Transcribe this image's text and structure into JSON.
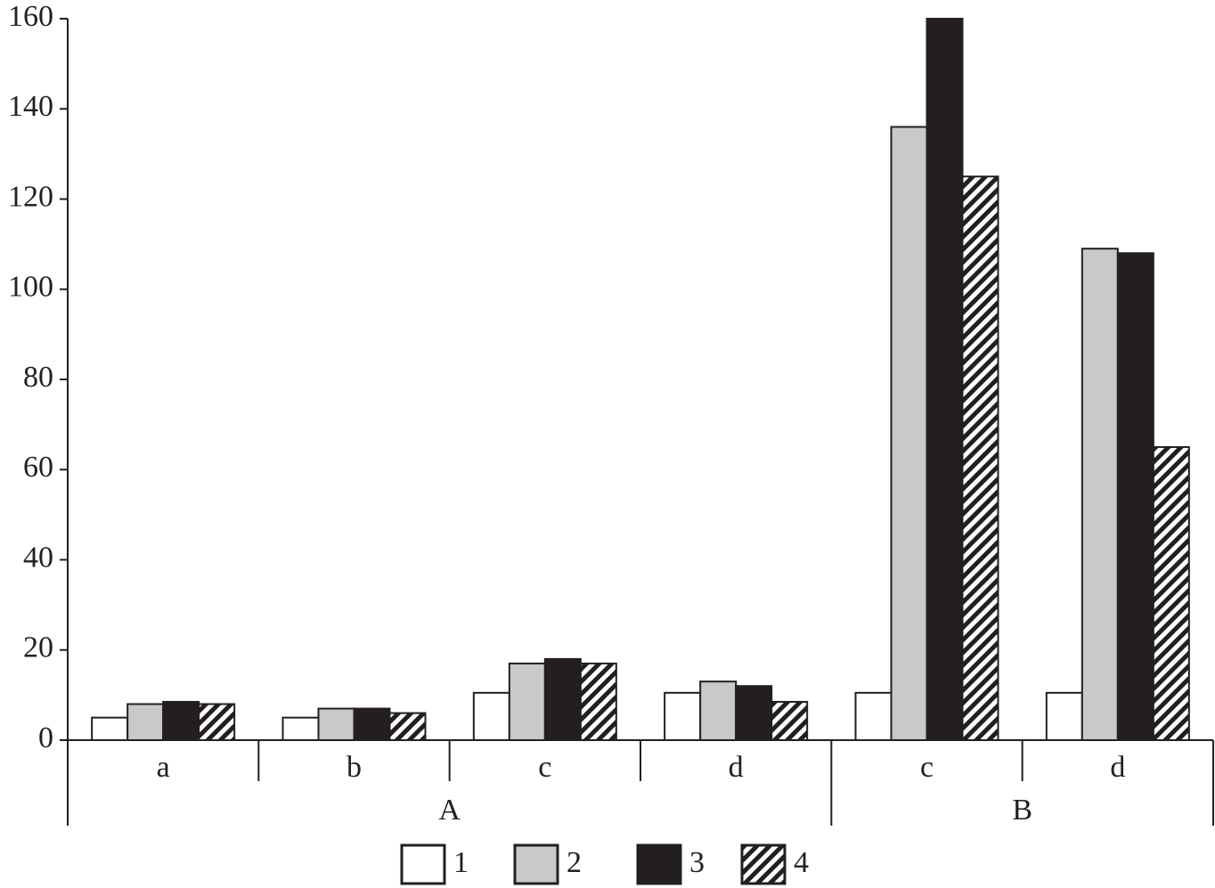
{
  "chart_data": {
    "type": "bar",
    "groups": [
      {
        "name": "A",
        "categories": [
          "a",
          "b",
          "c",
          "d"
        ]
      },
      {
        "name": "B",
        "categories": [
          "c",
          "d"
        ]
      }
    ],
    "series": [
      {
        "name": "1",
        "color": "#ffffff",
        "values": [
          5,
          5,
          10.5,
          10.5,
          10.5,
          10.5
        ]
      },
      {
        "name": "2",
        "color": "#c8c9cb",
        "values": [
          8,
          7,
          17,
          13,
          136,
          109
        ]
      },
      {
        "name": "3",
        "color": "#231f20",
        "values": [
          8.5,
          7,
          18,
          12,
          160,
          108
        ]
      },
      {
        "name": "4",
        "color": "#231f20",
        "pattern": "hatch",
        "values": [
          8,
          6,
          17,
          8.5,
          125,
          65
        ]
      }
    ],
    "ylim": [
      0,
      160
    ],
    "yticks": [
      0,
      20,
      40,
      60,
      80,
      100,
      120,
      140,
      160
    ],
    "legend": "bottom"
  }
}
